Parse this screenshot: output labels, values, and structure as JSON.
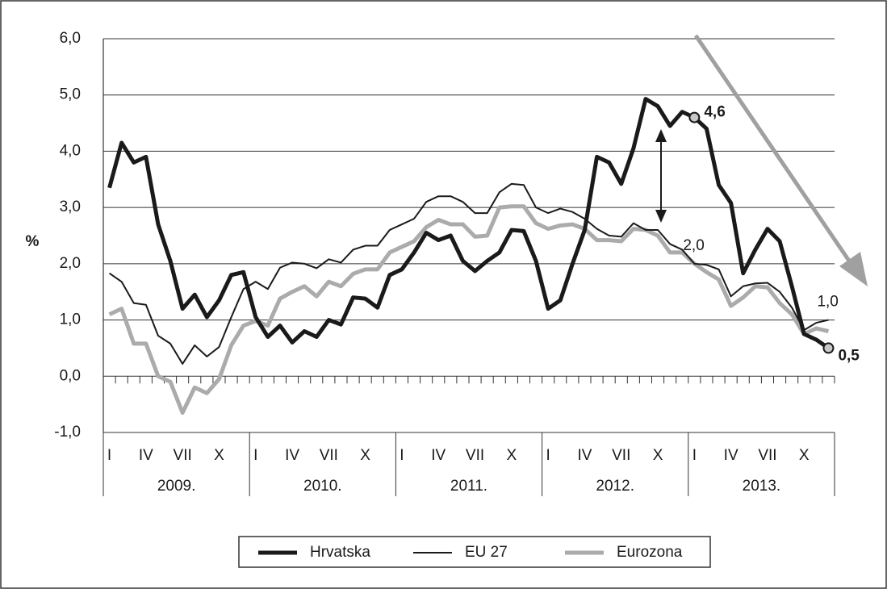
{
  "chart_data": {
    "type": "line",
    "y_label": "%",
    "categories": [
      "I",
      null,
      null,
      "IV",
      null,
      null,
      "VII",
      null,
      null,
      "X",
      null,
      null,
      "I",
      null,
      null,
      "IV",
      null,
      null,
      "VII",
      null,
      null,
      "X",
      null,
      null,
      "I",
      null,
      null,
      "IV",
      null,
      null,
      "VII",
      null,
      null,
      "X",
      null,
      null,
      "I",
      null,
      null,
      "IV",
      null,
      null,
      "VII",
      null,
      null,
      "X",
      null,
      null,
      "I",
      null,
      null,
      "IV",
      null,
      null,
      "VII",
      null,
      null,
      "X",
      null,
      null
    ],
    "groups": [
      "2009.",
      "2010.",
      "2011.",
      "2012.",
      "2013."
    ],
    "series": [
      {
        "name": "Hrvatska",
        "color": "#1a1a1a",
        "width": 5,
        "values": [
          3.35,
          4.15,
          3.8,
          3.9,
          2.7,
          2.05,
          1.2,
          1.45,
          1.05,
          1.35,
          1.8,
          1.85,
          1.05,
          0.7,
          0.9,
          0.6,
          0.8,
          0.7,
          1.0,
          0.92,
          1.4,
          1.38,
          1.22,
          1.8,
          1.9,
          2.2,
          2.55,
          2.42,
          2.5,
          2.05,
          1.87,
          2.05,
          2.2,
          2.6,
          2.58,
          2.05,
          1.2,
          1.35,
          2.0,
          2.6,
          3.9,
          3.8,
          3.42,
          4.05,
          4.93,
          4.8,
          4.45,
          4.7,
          4.6,
          4.4,
          3.4,
          3.08,
          1.83,
          2.25,
          2.62,
          2.4,
          1.6,
          0.75,
          0.65,
          0.5
        ],
        "value_labels": [
          null,
          null,
          null,
          null,
          null,
          null,
          null,
          null,
          null,
          null,
          null,
          null,
          null,
          null,
          null,
          null,
          null,
          null,
          null,
          null,
          null,
          null,
          null,
          null,
          null,
          null,
          null,
          null,
          null,
          null,
          null,
          null,
          null,
          null,
          null,
          null,
          null,
          null,
          null,
          null,
          null,
          null,
          null,
          null,
          null,
          null,
          null,
          null,
          "4,6",
          null,
          null,
          null,
          null,
          null,
          null,
          null,
          null,
          null,
          null,
          "0,5"
        ]
      },
      {
        "name": "EU 27",
        "color": "#1a1a1a",
        "width": 2,
        "values": [
          1.83,
          1.68,
          1.3,
          1.27,
          0.72,
          0.58,
          0.22,
          0.55,
          0.35,
          0.52,
          1.05,
          1.55,
          1.68,
          1.55,
          1.93,
          2.02,
          2.0,
          1.92,
          2.08,
          2.02,
          2.25,
          2.32,
          2.32,
          2.6,
          2.7,
          2.8,
          3.1,
          3.2,
          3.2,
          3.1,
          2.9,
          2.9,
          3.27,
          3.42,
          3.4,
          3.0,
          2.9,
          2.98,
          2.92,
          2.8,
          2.62,
          2.5,
          2.48,
          2.72,
          2.6,
          2.6,
          2.35,
          2.25,
          2.0,
          1.98,
          1.9,
          1.42,
          1.6,
          1.65,
          1.66,
          1.5,
          1.22,
          0.82,
          0.95,
          1.0
        ],
        "value_labels": [
          null,
          null,
          null,
          null,
          null,
          null,
          null,
          null,
          null,
          null,
          null,
          null,
          null,
          null,
          null,
          null,
          null,
          null,
          null,
          null,
          null,
          null,
          null,
          null,
          null,
          null,
          null,
          null,
          null,
          null,
          null,
          null,
          null,
          null,
          null,
          null,
          null,
          null,
          null,
          null,
          null,
          null,
          null,
          null,
          null,
          null,
          null,
          null,
          "2,0",
          null,
          null,
          null,
          null,
          null,
          null,
          null,
          null,
          null,
          null,
          "1,0"
        ]
      },
      {
        "name": "Eurozona",
        "color": "#ababab",
        "width": 5,
        "values": [
          1.1,
          1.2,
          0.58,
          0.58,
          0.0,
          -0.1,
          -0.65,
          -0.2,
          -0.3,
          -0.05,
          0.55,
          0.9,
          0.98,
          0.9,
          1.38,
          1.5,
          1.6,
          1.42,
          1.68,
          1.6,
          1.82,
          1.9,
          1.9,
          2.2,
          2.3,
          2.4,
          2.65,
          2.78,
          2.7,
          2.7,
          2.48,
          2.5,
          3.0,
          3.02,
          3.02,
          2.72,
          2.62,
          2.68,
          2.7,
          2.62,
          2.42,
          2.42,
          2.4,
          2.62,
          2.6,
          2.5,
          2.2,
          2.2,
          2.0,
          1.85,
          1.72,
          1.25,
          1.4,
          1.6,
          1.58,
          1.3,
          1.1,
          0.75,
          0.85,
          0.8
        ]
      }
    ],
    "ylim": [
      -1.0,
      6.0
    ],
    "yticks": [
      {
        "value": -1.0,
        "label": "-1,0"
      },
      {
        "value": 0.0,
        "label": "0,0"
      },
      {
        "value": 1.0,
        "label": "1,0"
      },
      {
        "value": 2.0,
        "label": "2,0"
      },
      {
        "value": 3.0,
        "label": "3,0"
      },
      {
        "value": 4.0,
        "label": "4,0"
      },
      {
        "value": 5.0,
        "label": "5,0"
      },
      {
        "value": 6.0,
        "label": "6,0"
      }
    ],
    "grid": true,
    "legend": "bottom"
  }
}
